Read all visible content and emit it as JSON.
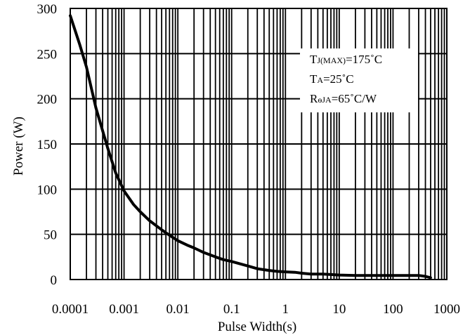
{
  "chart_data": {
    "type": "line",
    "xscale": "log",
    "xlim": [
      0.0001,
      1000
    ],
    "ylim": [
      0,
      300
    ],
    "xlabel": "Pulse Width(s)",
    "ylabel": "Power (W)",
    "x_ticks": [
      "0.0001",
      "0.001",
      "0.01",
      "0.1",
      "1",
      "10",
      "100",
      "1000"
    ],
    "y_ticks": [
      "0",
      "50",
      "100",
      "150",
      "200",
      "250",
      "300"
    ],
    "grid": true,
    "annotations": {
      "line1": {
        "main": "T",
        "sub": "J(MAX)",
        "tail": "=175˚C"
      },
      "line2": {
        "main": "T",
        "sub": "A",
        "tail": "=25˚C"
      },
      "line3": {
        "main": "R",
        "sub": "ѳJA",
        "tail": "=65˚C/W"
      }
    },
    "series": [
      {
        "color": "#000000",
        "x": [
          0.0001,
          0.00015,
          0.0002,
          0.0003,
          0.0005,
          0.0007,
          0.001,
          0.0015,
          0.002,
          0.003,
          0.005,
          0.007,
          0.01,
          0.015,
          0.02,
          0.03,
          0.05,
          0.07,
          0.1,
          0.15,
          0.2,
          0.3,
          0.5,
          0.7,
          1,
          1.5,
          2,
          3,
          5,
          7,
          10,
          20,
          50,
          100,
          200,
          300,
          400,
          500
        ],
        "y": [
          292,
          260,
          235,
          190,
          145,
          118,
          98,
          83,
          75,
          65,
          55,
          49,
          43,
          38,
          35,
          30,
          25,
          22,
          20,
          17,
          15,
          12,
          10,
          9,
          8.5,
          8,
          7,
          6,
          6,
          5.5,
          5,
          4.5,
          4.5,
          4.5,
          4.5,
          4.5,
          3.5,
          2
        ]
      }
    ]
  }
}
